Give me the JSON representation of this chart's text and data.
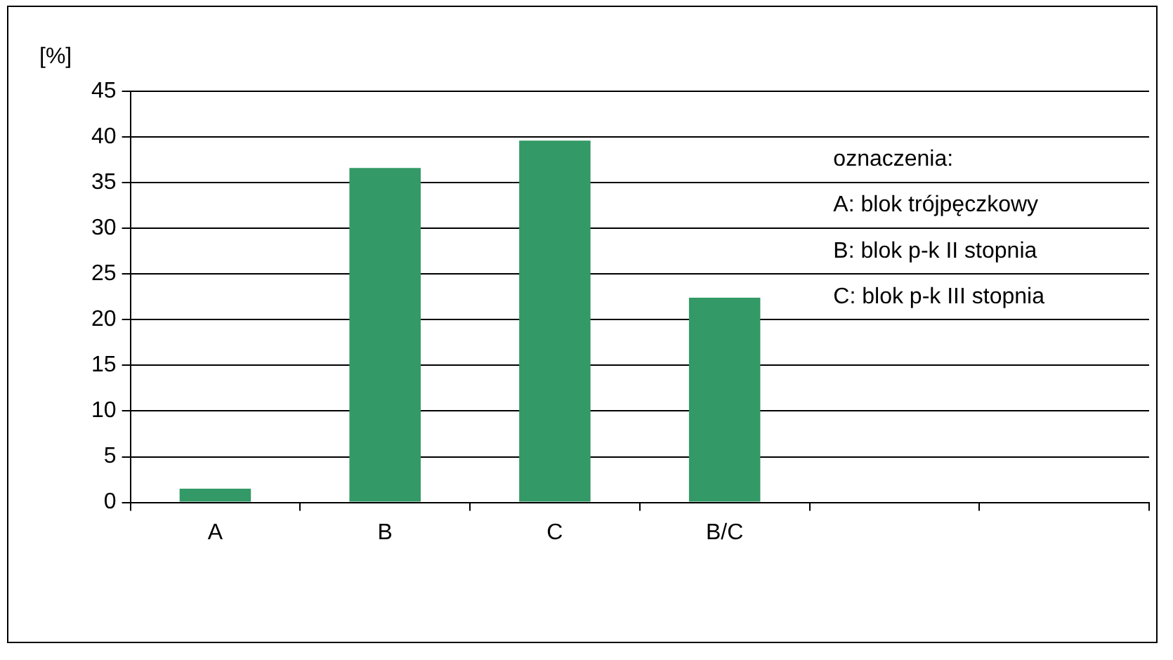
{
  "chart_data": {
    "type": "bar",
    "ylabel": "[%]",
    "categories": [
      "A",
      "B",
      "C",
      "B/C",
      null,
      null
    ],
    "values": [
      1.5,
      36.6,
      39.6,
      22.4,
      null,
      null
    ],
    "color": "#339966",
    "ylim": [
      0,
      45
    ],
    "yticks": [
      0,
      5,
      10,
      15,
      20,
      25,
      30,
      35,
      40,
      45
    ],
    "grid": "y",
    "legend": false,
    "annotations": [
      "oznaczenia:",
      "A: blok trójpęczkowy",
      "B: blok p-k II stopnia",
      "C: blok p-k III stopnia"
    ]
  }
}
